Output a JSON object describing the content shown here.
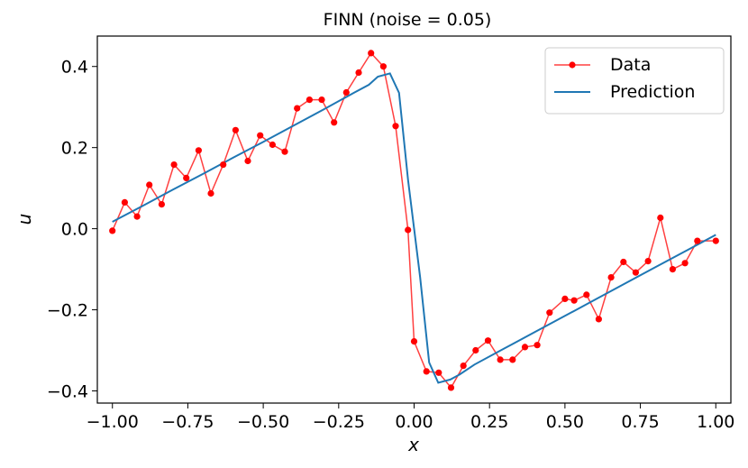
{
  "chart_data": {
    "type": "line",
    "title": "FINN (noise = 0.05)",
    "xlabel": "x",
    "ylabel": "u",
    "xlim": [
      -1.05,
      1.05
    ],
    "ylim": [
      -0.43,
      0.475
    ],
    "xticks": [
      -1.0,
      -0.75,
      -0.5,
      -0.25,
      0.0,
      0.25,
      0.5,
      0.75,
      1.0
    ],
    "xtick_labels": [
      "−1.00",
      "−0.75",
      "−0.50",
      "−0.25",
      "0.00",
      "0.25",
      "0.50",
      "0.75",
      "1.00"
    ],
    "yticks": [
      -0.4,
      -0.2,
      0.0,
      0.2,
      0.4
    ],
    "ytick_labels": [
      "−0.4",
      "−0.2",
      "0.0",
      "0.2",
      "0.4"
    ],
    "grid": false,
    "legend_position": "top-right",
    "series": [
      {
        "name": "Data",
        "color": "#ff0000",
        "marker": "circle",
        "x": [
          -1.0,
          -0.9592,
          -0.9184,
          -0.8776,
          -0.8367,
          -0.7959,
          -0.7551,
          -0.7143,
          -0.6735,
          -0.6327,
          -0.5918,
          -0.551,
          -0.5102,
          -0.4694,
          -0.4286,
          -0.3878,
          -0.3469,
          -0.3061,
          -0.2653,
          -0.2245,
          -0.1837,
          -0.1429,
          -0.102,
          -0.0612,
          -0.0204,
          0.0,
          0.0408,
          0.0816,
          0.1224,
          0.1633,
          0.2041,
          0.2449,
          0.2857,
          0.3265,
          0.3673,
          0.4082,
          0.449,
          0.5,
          0.5306,
          0.5714,
          0.6122,
          0.6531,
          0.6939,
          0.7347,
          0.7755,
          0.8163,
          0.8571,
          0.898,
          0.9388,
          1.0
        ],
        "y": [
          -0.005,
          0.065,
          0.03,
          0.108,
          0.06,
          0.158,
          0.125,
          0.193,
          0.087,
          0.158,
          0.243,
          0.167,
          0.23,
          0.207,
          0.19,
          0.297,
          0.318,
          0.318,
          0.262,
          0.336,
          0.385,
          0.433,
          0.4,
          0.253,
          -0.003,
          -0.278,
          -0.352,
          -0.355,
          -0.392,
          -0.338,
          -0.3,
          -0.276,
          -0.323,
          -0.323,
          -0.292,
          -0.287,
          -0.207,
          -0.173,
          -0.177,
          -0.163,
          -0.223,
          -0.12,
          -0.082,
          -0.108,
          -0.08,
          0.027,
          -0.1,
          -0.085,
          -0.03,
          -0.03
        ]
      },
      {
        "name": "Prediction",
        "color": "#1f77b4",
        "marker": "none",
        "x": [
          -1.0,
          -0.9,
          -0.8,
          -0.7,
          -0.6,
          -0.5,
          -0.4,
          -0.3,
          -0.2,
          -0.15,
          -0.12,
          -0.08,
          -0.05,
          -0.02,
          0.0,
          0.02,
          0.05,
          0.08,
          0.12,
          0.15,
          0.2,
          0.3,
          0.4,
          0.5,
          0.6,
          0.7,
          0.8,
          0.9,
          1.0
        ],
        "y": [
          0.017,
          0.056,
          0.096,
          0.135,
          0.175,
          0.214,
          0.254,
          0.294,
          0.335,
          0.355,
          0.375,
          0.383,
          0.335,
          0.12,
          0.0,
          -0.12,
          -0.33,
          -0.38,
          -0.372,
          -0.36,
          -0.335,
          -0.295,
          -0.255,
          -0.215,
          -0.175,
          -0.135,
          -0.095,
          -0.055,
          -0.015
        ]
      }
    ]
  }
}
